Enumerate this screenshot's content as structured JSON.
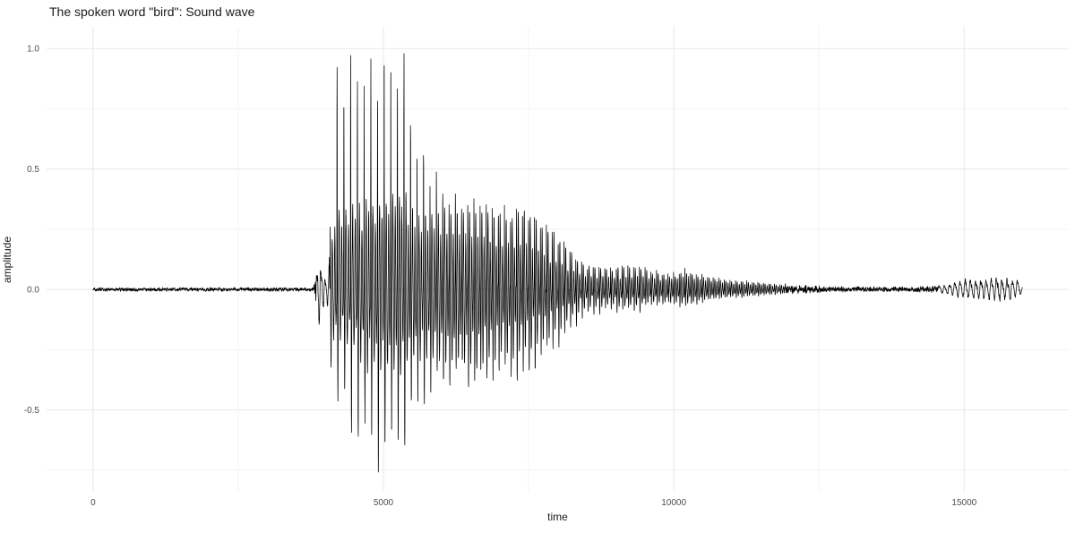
{
  "chart_data": {
    "type": "line",
    "title": "The spoken word \"bird\": Sound wave",
    "xlabel": "time",
    "ylabel": "amplitude",
    "xlim": [
      -800,
      16800
    ],
    "ylim": [
      -0.84,
      1.09
    ],
    "grid": true,
    "legend": "none",
    "background_color": "#ffffff",
    "line_color": "#000000",
    "grid_color_major": "#e8e8e8",
    "grid_color_minor": "#f3f3f3",
    "tick_label_color": "#4d4d4d",
    "x_ticks": {
      "major": [
        0,
        5000,
        10000,
        15000
      ],
      "labels": [
        "0",
        "5000",
        "10000",
        "15000"
      ],
      "minor": [
        2500,
        7500,
        12500
      ]
    },
    "y_ticks": {
      "major": [
        -0.5,
        0,
        0.5,
        1
      ],
      "labels": [
        "-0.5",
        "0.0",
        "0.5",
        "1.0"
      ],
      "minor": [
        -0.75,
        -0.25,
        0.25,
        0.75
      ]
    },
    "waveform": {
      "t_range": [
        0,
        16000
      ],
      "sample_step": 2,
      "voiced_segment": [
        4080,
        11900
      ],
      "pitch_period_points": [
        [
          4080,
          118
        ],
        [
          5600,
          112
        ],
        [
          6500,
          106
        ],
        [
          8500,
          100
        ],
        [
          11900,
          95
        ]
      ],
      "osc_segments": [
        {
          "range": [
            3840,
            4080
          ],
          "period": 70
        },
        {
          "range": [
            14550,
            16000
          ],
          "period": 90
        }
      ],
      "envelope_upper": [
        [
          0,
          0.008
        ],
        [
          3700,
          0.008
        ],
        [
          3800,
          0.012
        ],
        [
          3860,
          0.09
        ],
        [
          3900,
          0.13
        ],
        [
          3940,
          0.07
        ],
        [
          4000,
          0.04
        ],
        [
          4060,
          0.06
        ],
        [
          4090,
          0.35
        ],
        [
          4130,
          0.8
        ],
        [
          4170,
          0.97
        ],
        [
          4300,
          1.0
        ],
        [
          4500,
          0.98
        ],
        [
          4700,
          0.96
        ],
        [
          4900,
          0.95
        ],
        [
          5100,
          0.98
        ],
        [
          5300,
          0.99
        ],
        [
          5420,
          0.9
        ],
        [
          5500,
          0.7
        ],
        [
          5600,
          0.64
        ],
        [
          5800,
          0.56
        ],
        [
          6000,
          0.5
        ],
        [
          6200,
          0.46
        ],
        [
          6400,
          0.44
        ],
        [
          6600,
          0.47
        ],
        [
          6800,
          0.44
        ],
        [
          7000,
          0.42
        ],
        [
          7200,
          0.41
        ],
        [
          7400,
          0.46
        ],
        [
          7600,
          0.41
        ],
        [
          7800,
          0.36
        ],
        [
          8000,
          0.31
        ],
        [
          8200,
          0.24
        ],
        [
          8400,
          0.18
        ],
        [
          8600,
          0.15
        ],
        [
          8900,
          0.14
        ],
        [
          9200,
          0.16
        ],
        [
          9400,
          0.15
        ],
        [
          9600,
          0.12
        ],
        [
          9800,
          0.1
        ],
        [
          10000,
          0.1
        ],
        [
          10200,
          0.12
        ],
        [
          10400,
          0.09
        ],
        [
          10600,
          0.075
        ],
        [
          10800,
          0.06
        ],
        [
          11000,
          0.05
        ],
        [
          11300,
          0.042
        ],
        [
          11600,
          0.032
        ],
        [
          11900,
          0.024
        ],
        [
          12200,
          0.018
        ],
        [
          12600,
          0.013
        ],
        [
          13200,
          0.011
        ],
        [
          14000,
          0.011
        ],
        [
          14500,
          0.014
        ],
        [
          14800,
          0.025
        ],
        [
          15000,
          0.042
        ],
        [
          15200,
          0.038
        ],
        [
          15400,
          0.045
        ],
        [
          15600,
          0.05
        ],
        [
          15800,
          0.045
        ],
        [
          15950,
          0.03
        ],
        [
          16000,
          0.01
        ]
      ],
      "envelope_lower": [
        [
          0,
          0.008
        ],
        [
          3700,
          0.008
        ],
        [
          3800,
          0.012
        ],
        [
          3860,
          0.08
        ],
        [
          3900,
          0.14
        ],
        [
          3940,
          0.08
        ],
        [
          4000,
          0.04
        ],
        [
          4060,
          0.06
        ],
        [
          4090,
          0.3
        ],
        [
          4130,
          0.55
        ],
        [
          4170,
          0.58
        ],
        [
          4300,
          0.62
        ],
        [
          4500,
          0.68
        ],
        [
          4700,
          0.76
        ],
        [
          4900,
          0.78
        ],
        [
          5100,
          0.75
        ],
        [
          5300,
          0.73
        ],
        [
          5420,
          0.66
        ],
        [
          5500,
          0.58
        ],
        [
          5600,
          0.55
        ],
        [
          5800,
          0.5
        ],
        [
          6000,
          0.46
        ],
        [
          6200,
          0.43
        ],
        [
          6400,
          0.42
        ],
        [
          6600,
          0.46
        ],
        [
          6800,
          0.43
        ],
        [
          7000,
          0.41
        ],
        [
          7200,
          0.4
        ],
        [
          7400,
          0.43
        ],
        [
          7600,
          0.39
        ],
        [
          7800,
          0.33
        ],
        [
          8000,
          0.29
        ],
        [
          8200,
          0.22
        ],
        [
          8400,
          0.16
        ],
        [
          8600,
          0.13
        ],
        [
          8900,
          0.12
        ],
        [
          9200,
          0.13
        ],
        [
          9400,
          0.12
        ],
        [
          9600,
          0.1
        ],
        [
          9800,
          0.09
        ],
        [
          10000,
          0.09
        ],
        [
          10200,
          0.1
        ],
        [
          10400,
          0.08
        ],
        [
          10600,
          0.065
        ],
        [
          10800,
          0.05
        ],
        [
          11000,
          0.045
        ],
        [
          11300,
          0.037
        ],
        [
          11600,
          0.028
        ],
        [
          11900,
          0.021
        ],
        [
          12200,
          0.016
        ],
        [
          12600,
          0.012
        ],
        [
          13200,
          0.01
        ],
        [
          14000,
          0.01
        ],
        [
          14500,
          0.013
        ],
        [
          14800,
          0.02
        ],
        [
          15000,
          0.032
        ],
        [
          15200,
          0.03
        ],
        [
          15400,
          0.035
        ],
        [
          15600,
          0.04
        ],
        [
          15800,
          0.035
        ],
        [
          15950,
          0.025
        ],
        [
          16000,
          0.01
        ]
      ]
    }
  }
}
